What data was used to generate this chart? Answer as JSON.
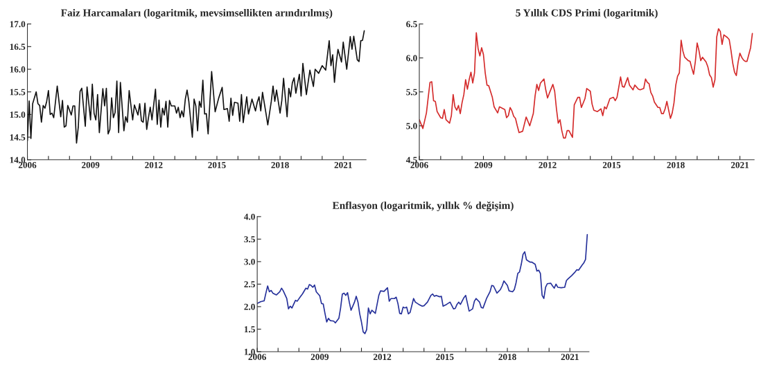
{
  "chart_data": [
    {
      "type": "line",
      "title": "Faiz Harcamaları (logaritmik, mevsimsellikten arındırılmış)",
      "x": [
        "2006-01",
        "2006-02",
        "2006-03",
        "2006-04",
        "2006-06",
        "2006-07",
        "2006-08",
        "2006-09",
        "2006-10",
        "2006-11",
        "2006-12",
        "2007-01",
        "2007-02",
        "2007-03",
        "2007-04",
        "2007-06",
        "2007-08",
        "2007-09",
        "2007-10",
        "2007-11",
        "2007-12",
        "2008-02",
        "2008-03",
        "2008-04",
        "2008-05",
        "2008-06",
        "2008-07",
        "2008-08",
        "2008-10",
        "2008-11",
        "2009-01",
        "2009-02",
        "2009-03",
        "2009-04",
        "2009-05",
        "2009-06",
        "2009-08",
        "2009-09",
        "2009-10",
        "2009-11",
        "2009-12",
        "2010-01",
        "2010-02",
        "2010-03",
        "2010-04",
        "2010-05",
        "2010-06",
        "2010-08",
        "2010-09",
        "2010-10",
        "2010-11",
        "2011-01",
        "2011-02",
        "2011-04",
        "2011-05",
        "2011-06",
        "2011-07",
        "2011-08",
        "2011-09",
        "2011-10",
        "2011-11",
        "2011-12",
        "2012-02",
        "2012-03",
        "2012-04",
        "2012-05",
        "2012-06",
        "2012-07",
        "2012-08",
        "2012-09",
        "2012-10",
        "2012-11",
        "2013-01",
        "2013-02",
        "2013-03",
        "2013-04",
        "2013-05",
        "2013-06",
        "2013-07",
        "2013-08",
        "2013-09",
        "2013-11",
        "2013-12",
        "2014-01",
        "2014-02",
        "2014-03",
        "2014-04",
        "2014-05",
        "2014-06",
        "2014-07",
        "2014-08",
        "2014-10",
        "2014-12",
        "2015-02",
        "2015-04",
        "2015-05",
        "2015-07",
        "2015-08",
        "2015-09",
        "2015-10",
        "2015-11",
        "2016-01",
        "2016-02",
        "2016-03",
        "2016-04",
        "2016-06",
        "2016-07",
        "2016-09",
        "2016-11",
        "2016-12",
        "2017-01",
        "2017-02",
        "2017-03",
        "2017-05",
        "2017-06",
        "2017-08",
        "2017-09",
        "2017-10",
        "2017-11",
        "2018-01",
        "2018-02",
        "2018-03",
        "2018-05",
        "2018-06",
        "2018-07",
        "2018-08",
        "2018-09",
        "2018-10",
        "2018-12",
        "2019-01",
        "2019-02",
        "2019-04",
        "2019-06",
        "2019-08",
        "2019-09",
        "2019-11",
        "2020-01",
        "2020-03",
        "2020-05",
        "2020-06",
        "2020-07",
        "2020-08",
        "2020-09",
        "2020-10",
        "2020-12",
        "2021-01",
        "2021-03",
        "2021-05",
        "2021-06",
        "2021-07",
        "2021-09",
        "2021-10",
        "2021-11",
        "2021-12",
        "2022-01"
      ],
      "series": [
        {
          "color": "#111111",
          "values": [
            14.42,
            15.3,
            14.47,
            15.24,
            15.5,
            15.24,
            15.2,
            14.83,
            15.2,
            15.14,
            15.29,
            15.53,
            15.0,
            15.03,
            14.93,
            15.63,
            14.95,
            15.31,
            14.72,
            14.75,
            15.2,
            14.99,
            15.19,
            15.19,
            14.37,
            14.72,
            15.51,
            15.58,
            14.74,
            15.61,
            14.88,
            15.67,
            15.03,
            14.88,
            15.44,
            14.6,
            15.57,
            15.19,
            15.58,
            14.57,
            14.67,
            15.37,
            14.93,
            15.05,
            15.74,
            14.6,
            15.71,
            14.64,
            14.95,
            14.83,
            15.53,
            14.88,
            15.21,
            14.99,
            15.24,
            14.86,
            14.83,
            15.25,
            14.67,
            14.93,
            15.16,
            14.88,
            15.56,
            14.78,
            15.32,
            14.72,
            15.14,
            14.99,
            15.29,
            14.72,
            15.31,
            15.19,
            15.19,
            15.03,
            15.16,
            14.93,
            15.08,
            14.95,
            15.34,
            15.54,
            15.29,
            14.5,
            15.34,
            15.19,
            14.64,
            15.29,
            15.16,
            15.76,
            15.01,
            15.02,
            14.57,
            15.95,
            15.06,
            15.36,
            15.6,
            15.11,
            15.13,
            14.85,
            15.36,
            14.98,
            15.27,
            15.25,
            14.85,
            15.44,
            14.82,
            15.39,
            15.01,
            15.34,
            15.08,
            15.27,
            15.39,
            15.08,
            15.49,
            15.02,
            14.77,
            15.29,
            15.63,
            15.29,
            15.54,
            15.03,
            15.31,
            15.8,
            14.95,
            15.58,
            15.39,
            15.7,
            15.81,
            15.47,
            15.89,
            15.41,
            16.13,
            15.44,
            15.98,
            15.62,
            16.0,
            15.91,
            16.08,
            15.98,
            16.63,
            16.08,
            16.32,
            15.71,
            16.13,
            16.44,
            16.16,
            16.6,
            16.0,
            16.72,
            16.44,
            16.73,
            16.21,
            16.17,
            16.63,
            16.64,
            16.85
          ]
        }
      ],
      "xlim": [
        "2006-01",
        "2022-02"
      ],
      "xticks": [
        {
          "value": "2006",
          "label": "2006"
        },
        {
          "value": "2007",
          "label": null
        },
        {
          "value": "2008",
          "label": null
        },
        {
          "value": "2009",
          "label": "2009"
        },
        {
          "value": "2010",
          "label": null
        },
        {
          "value": "2011",
          "label": null
        },
        {
          "value": "2012",
          "label": "2012"
        },
        {
          "value": "2013",
          "label": null
        },
        {
          "value": "2014",
          "label": null
        },
        {
          "value": "2015",
          "label": "2015"
        },
        {
          "value": "2016",
          "label": null
        },
        {
          "value": "2017",
          "label": null
        },
        {
          "value": "2018",
          "label": "2018"
        },
        {
          "value": "2019",
          "label": null
        },
        {
          "value": "2020",
          "label": null
        },
        {
          "value": "2021",
          "label": "2021"
        }
      ],
      "ylim": [
        14.0,
        17.0
      ],
      "yticks": [
        {
          "value": 14.0,
          "label": "14.0"
        },
        {
          "value": 14.5,
          "label": "14.5"
        },
        {
          "value": 15.0,
          "label": "15.0"
        },
        {
          "value": 15.5,
          "label": "15.5"
        },
        {
          "value": 16.0,
          "label": "16.0"
        },
        {
          "value": 16.5,
          "label": "16.5"
        },
        {
          "value": 17.0,
          "label": "17.0"
        }
      ]
    },
    {
      "type": "line",
      "title": "5 Yıllık CDS Primi (logaritmik)",
      "x": [
        "2006-01",
        "2006-03",
        "2006-05",
        "2006-06",
        "2006-07",
        "2006-08",
        "2006-09",
        "2006-10",
        "2006-11",
        "2007-01",
        "2007-02",
        "2007-03",
        "2007-04",
        "2007-06",
        "2007-07",
        "2007-08",
        "2007-09",
        "2007-10",
        "2007-11",
        "2007-12",
        "2008-01",
        "2008-02",
        "2008-03",
        "2008-04",
        "2008-05",
        "2008-06",
        "2008-07",
        "2008-08",
        "2008-09",
        "2008-10",
        "2008-11",
        "2008-12",
        "2009-01",
        "2009-02",
        "2009-03",
        "2009-04",
        "2009-06",
        "2009-07",
        "2009-09",
        "2009-10",
        "2010-01",
        "2010-02",
        "2010-03",
        "2010-04",
        "2010-05",
        "2010-06",
        "2010-07",
        "2010-08",
        "2010-09",
        "2010-11",
        "2011-01",
        "2011-03",
        "2011-05",
        "2011-06",
        "2011-07",
        "2011-08",
        "2011-09",
        "2011-11",
        "2011-12",
        "2012-01",
        "2012-02",
        "2012-04",
        "2012-05",
        "2012-06",
        "2012-07",
        "2012-08",
        "2012-09",
        "2012-10",
        "2012-11",
        "2012-12",
        "2013-01",
        "2013-03",
        "2013-04",
        "2013-06",
        "2013-07",
        "2013-08",
        "2013-10",
        "2013-11",
        "2014-01",
        "2014-02",
        "2014-03",
        "2014-05",
        "2014-07",
        "2014-08",
        "2014-09",
        "2014-10",
        "2014-12",
        "2015-02",
        "2015-03",
        "2015-04",
        "2015-05",
        "2015-06",
        "2015-07",
        "2015-08",
        "2015-10",
        "2015-11",
        "2016-01",
        "2016-02",
        "2016-04",
        "2016-05",
        "2016-07",
        "2016-08",
        "2016-09",
        "2016-10",
        "2016-11",
        "2016-12",
        "2017-01",
        "2017-03",
        "2017-04",
        "2017-05",
        "2017-06",
        "2017-07",
        "2017-08",
        "2017-09",
        "2017-10",
        "2017-11",
        "2017-12",
        "2018-01",
        "2018-02",
        "2018-03",
        "2018-04",
        "2018-05",
        "2018-06",
        "2018-08",
        "2018-09",
        "2018-10",
        "2018-11",
        "2018-12",
        "2019-01",
        "2019-02",
        "2019-03",
        "2019-04",
        "2019-06",
        "2019-07",
        "2019-08",
        "2019-09",
        "2019-10",
        "2019-11",
        "2019-12",
        "2020-01",
        "2020-02",
        "2020-03",
        "2020-04",
        "2020-06",
        "2020-07",
        "2020-08",
        "2020-09",
        "2020-10",
        "2020-11",
        "2020-12",
        "2021-01",
        "2021-02",
        "2021-03",
        "2021-04",
        "2021-05",
        "2021-06",
        "2021-07",
        "2021-08"
      ],
      "series": [
        {
          "color": "#d42a2a",
          "values": [
            5.09,
            4.96,
            5.19,
            5.42,
            5.64,
            5.65,
            5.37,
            5.36,
            5.21,
            5.12,
            5.11,
            5.24,
            5.09,
            5.04,
            5.15,
            5.46,
            5.28,
            5.23,
            5.3,
            5.18,
            5.34,
            5.46,
            5.68,
            5.54,
            5.68,
            5.79,
            5.63,
            5.78,
            6.37,
            6.14,
            6.03,
            6.15,
            6.05,
            5.78,
            5.6,
            5.59,
            5.42,
            5.28,
            5.19,
            5.28,
            5.24,
            5.12,
            5.15,
            5.27,
            5.22,
            5.14,
            5.11,
            5.0,
            4.9,
            4.92,
            5.13,
            5.0,
            5.18,
            5.44,
            5.61,
            5.52,
            5.63,
            5.69,
            5.53,
            5.41,
            5.48,
            5.61,
            5.51,
            5.25,
            5.04,
            5.09,
            4.93,
            4.82,
            4.82,
            4.93,
            4.93,
            4.83,
            5.31,
            5.42,
            5.42,
            5.27,
            5.4,
            5.55,
            5.51,
            5.32,
            5.23,
            5.21,
            5.25,
            5.15,
            5.28,
            5.25,
            5.4,
            5.42,
            5.37,
            5.42,
            5.57,
            5.72,
            5.58,
            5.57,
            5.71,
            5.6,
            5.53,
            5.6,
            5.54,
            5.53,
            5.55,
            5.69,
            5.64,
            5.62,
            5.49,
            5.44,
            5.35,
            5.27,
            5.27,
            5.18,
            5.18,
            5.25,
            5.36,
            5.23,
            5.11,
            5.19,
            5.34,
            5.6,
            5.73,
            5.78,
            6.26,
            6.1,
            6.01,
            5.96,
            5.95,
            5.85,
            5.76,
            5.95,
            6.22,
            6.11,
            5.96,
            6.01,
            5.94,
            5.87,
            5.75,
            5.71,
            5.57,
            5.68,
            6.31,
            6.43,
            6.39,
            6.2,
            6.34,
            6.3,
            6.27,
            6.11,
            5.92,
            5.79,
            5.74,
            5.94,
            6.07,
            6.01,
            5.97,
            5.95,
            5.95,
            6.05,
            6.15,
            6.36
          ]
        }
      ],
      "xlim": [
        "2006-01",
        "2021-09"
      ],
      "xticks": [
        {
          "value": "2006",
          "label": "2006"
        },
        {
          "value": "2007",
          "label": null
        },
        {
          "value": "2008",
          "label": null
        },
        {
          "value": "2009",
          "label": "2009"
        },
        {
          "value": "2010",
          "label": null
        },
        {
          "value": "2011",
          "label": null
        },
        {
          "value": "2012",
          "label": "2012"
        },
        {
          "value": "2013",
          "label": null
        },
        {
          "value": "2014",
          "label": null
        },
        {
          "value": "2015",
          "label": "2015"
        },
        {
          "value": "2016",
          "label": null
        },
        {
          "value": "2017",
          "label": null
        },
        {
          "value": "2018",
          "label": "2018"
        },
        {
          "value": "2019",
          "label": null
        },
        {
          "value": "2020",
          "label": null
        },
        {
          "value": "2021",
          "label": "2021"
        }
      ],
      "ylim": [
        4.5,
        6.5
      ],
      "yticks": [
        {
          "value": 4.5,
          "label": "4.5"
        },
        {
          "value": 5.0,
          "label": "5.0"
        },
        {
          "value": 5.5,
          "label": "5.5"
        },
        {
          "value": 6.0,
          "label": "6.0"
        },
        {
          "value": 6.5,
          "label": "6.5"
        }
      ]
    },
    {
      "type": "line",
      "title": "Enflasyon (logaritmik, yıllık % değişim)",
      "x": [
        "2006-01",
        "2006-03",
        "2006-05",
        "2006-06",
        "2006-07",
        "2006-08",
        "2006-09",
        "2006-10",
        "2006-12",
        "2007-02",
        "2007-03",
        "2007-04",
        "2007-06",
        "2007-07",
        "2007-08",
        "2007-09",
        "2007-11",
        "2007-12",
        "2008-02",
        "2008-03",
        "2008-05",
        "2008-06",
        "2008-07",
        "2008-08",
        "2008-09",
        "2008-10",
        "2008-11",
        "2009-01",
        "2009-02",
        "2009-03",
        "2009-04",
        "2009-05",
        "2009-06",
        "2009-07",
        "2009-09",
        "2009-10",
        "2009-12",
        "2010-01",
        "2010-02",
        "2010-03",
        "2010-04",
        "2010-05",
        "2010-06",
        "2010-07",
        "2010-09",
        "2010-10",
        "2010-11",
        "2010-12",
        "2011-01",
        "2011-02",
        "2011-03",
        "2011-04",
        "2011-05",
        "2011-06",
        "2011-07",
        "2011-09",
        "2011-11",
        "2011-12",
        "2012-02",
        "2012-04",
        "2012-05",
        "2012-06",
        "2012-08",
        "2012-09",
        "2012-10",
        "2012-11",
        "2012-12",
        "2013-01",
        "2013-02",
        "2013-03",
        "2013-04",
        "2013-05",
        "2013-07",
        "2013-08",
        "2013-10",
        "2013-12",
        "2014-01",
        "2014-03",
        "2014-05",
        "2014-06",
        "2014-07",
        "2014-08",
        "2014-10",
        "2014-11",
        "2014-12",
        "2015-02",
        "2015-04",
        "2015-06",
        "2015-07",
        "2015-08",
        "2015-09",
        "2015-10",
        "2015-12",
        "2016-01",
        "2016-03",
        "2016-05",
        "2016-06",
        "2016-07",
        "2016-09",
        "2016-10",
        "2016-11",
        "2017-01",
        "2017-03",
        "2017-04",
        "2017-05",
        "2017-07",
        "2017-09",
        "2017-10",
        "2017-11",
        "2018-01",
        "2018-02",
        "2018-04",
        "2018-05",
        "2018-06",
        "2018-07",
        "2018-08",
        "2018-09",
        "2018-10",
        "2018-11",
        "2018-12",
        "2019-02",
        "2019-03",
        "2019-05",
        "2019-06",
        "2019-07",
        "2019-08",
        "2019-09",
        "2019-10",
        "2019-11",
        "2019-12",
        "2020-02",
        "2020-03",
        "2020-04",
        "2020-05",
        "2020-06",
        "2020-08",
        "2020-10",
        "2020-11",
        "2020-12",
        "2021-02",
        "2021-04",
        "2021-05",
        "2021-06",
        "2021-08",
        "2021-09",
        "2021-10",
        "2021-11"
      ],
      "series": [
        {
          "color": "#25309a",
          "values": [
            2.07,
            2.11,
            2.13,
            2.3,
            2.46,
            2.33,
            2.36,
            2.3,
            2.26,
            2.33,
            2.41,
            2.35,
            2.18,
            1.95,
            2.01,
            1.97,
            2.14,
            2.12,
            2.23,
            2.28,
            2.41,
            2.39,
            2.49,
            2.47,
            2.43,
            2.48,
            2.33,
            2.24,
            2.07,
            2.06,
            1.85,
            1.66,
            1.74,
            1.69,
            1.68,
            1.64,
            1.74,
            1.97,
            2.28,
            2.3,
            2.25,
            2.31,
            2.1,
            1.92,
            2.1,
            2.23,
            2.1,
            1.84,
            1.66,
            1.44,
            1.4,
            1.49,
            1.97,
            1.84,
            1.92,
            1.85,
            2.25,
            2.35,
            2.34,
            2.42,
            2.12,
            2.18,
            2.18,
            2.21,
            2.07,
            1.85,
            1.84,
            1.99,
            1.97,
            1.99,
            1.84,
            1.87,
            2.18,
            2.1,
            2.05,
            2.01,
            2.02,
            2.1,
            2.25,
            2.28,
            2.23,
            2.25,
            2.22,
            2.23,
            2.01,
            2.05,
            2.1,
            1.95,
            1.96,
            2.05,
            2.1,
            2.05,
            2.2,
            2.25,
            1.9,
            1.95,
            2.12,
            2.18,
            2.1,
            1.98,
            1.97,
            2.18,
            2.33,
            2.47,
            2.46,
            2.3,
            2.38,
            2.46,
            2.57,
            2.47,
            2.35,
            2.33,
            2.38,
            2.53,
            2.74,
            2.77,
            2.94,
            3.16,
            3.22,
            3.04,
            2.99,
            2.99,
            2.94,
            2.79,
            2.81,
            2.74,
            2.25,
            2.18,
            2.43,
            2.51,
            2.52,
            2.46,
            2.41,
            2.5,
            2.43,
            2.42,
            2.43,
            2.58,
            2.62,
            2.69,
            2.77,
            2.82,
            2.81,
            2.92,
            2.97,
            3.05,
            3.6
          ]
        }
      ],
      "xlim": [
        "2006-01",
        "2021-12"
      ],
      "xticks": [
        {
          "value": "2006",
          "label": "2006"
        },
        {
          "value": "2007",
          "label": null
        },
        {
          "value": "2008",
          "label": null
        },
        {
          "value": "2009",
          "label": "2009"
        },
        {
          "value": "2010",
          "label": null
        },
        {
          "value": "2011",
          "label": null
        },
        {
          "value": "2012",
          "label": "2012"
        },
        {
          "value": "2013",
          "label": null
        },
        {
          "value": "2014",
          "label": null
        },
        {
          "value": "2015",
          "label": "2015"
        },
        {
          "value": "2016",
          "label": null
        },
        {
          "value": "2017",
          "label": null
        },
        {
          "value": "2018",
          "label": "2018"
        },
        {
          "value": "2019",
          "label": null
        },
        {
          "value": "2020",
          "label": null
        },
        {
          "value": "2021",
          "label": "2021"
        }
      ],
      "ylim": [
        1.0,
        4.0
      ],
      "yticks": [
        {
          "value": 1.0,
          "label": "1.0"
        },
        {
          "value": 1.5,
          "label": "1.5"
        },
        {
          "value": 2.0,
          "label": "2.0"
        },
        {
          "value": 2.5,
          "label": "2.5"
        },
        {
          "value": 3.0,
          "label": "3.0"
        },
        {
          "value": 3.5,
          "label": "3.5"
        },
        {
          "value": 4.0,
          "label": "4.0"
        }
      ]
    }
  ]
}
